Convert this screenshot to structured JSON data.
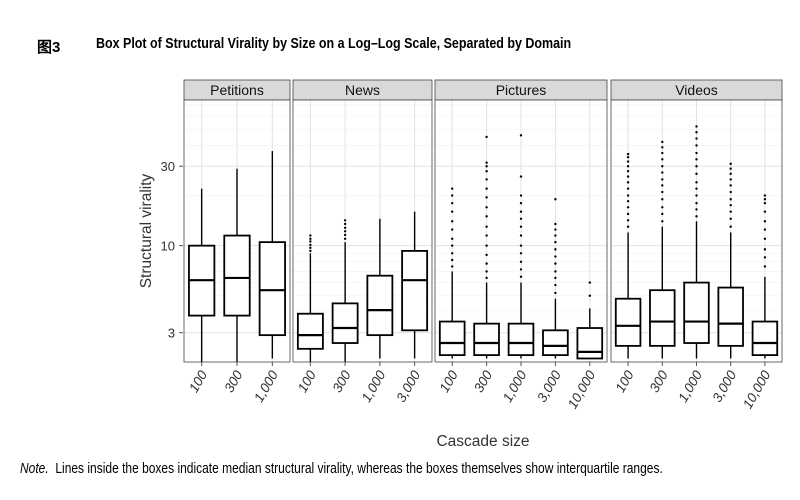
{
  "figure": {
    "number": "图3",
    "title": "Box Plot of Structural Virality by Size on a Log–Log Scale, Separated by Domain"
  },
  "note": {
    "lead": "Note.",
    "text": "Lines inside the boxes indicate median structural virality, whereas the boxes themselves show interquartile ranges."
  },
  "chart_data": {
    "type": "box",
    "xlabel": "Cascade size",
    "ylabel": "Structural virality",
    "y_scale": "log",
    "ylim": [
      2,
      75
    ],
    "y_ticks": [
      3,
      10,
      30
    ],
    "y_tick_labels": [
      "3",
      "10",
      "30"
    ],
    "grid": true,
    "line_color": "#000000",
    "strip_color": "#d9d9d9",
    "panels": [
      {
        "name": "Petitions",
        "boxes": [
          {
            "category": "100",
            "whisker_low": 2.0,
            "q1": 3.8,
            "median": 6.2,
            "q3": 10.0,
            "whisker_high": 22.0,
            "outliers": []
          },
          {
            "category": "300",
            "whisker_low": 2.0,
            "q1": 3.8,
            "median": 6.4,
            "q3": 11.5,
            "whisker_high": 29.0,
            "outliers": []
          },
          {
            "category": "1,000",
            "whisker_low": 2.1,
            "q1": 2.9,
            "median": 5.4,
            "q3": 10.5,
            "whisker_high": 37.0,
            "outliers": []
          }
        ]
      },
      {
        "name": "News",
        "boxes": [
          {
            "category": "100",
            "whisker_low": 2.0,
            "q1": 2.4,
            "median": 2.9,
            "q3": 3.9,
            "whisker_high": 9.0,
            "outliers": [
              9.3,
              9.7,
              10.1,
              10.6,
              11.0,
              11.5
            ]
          },
          {
            "category": "300",
            "whisker_low": 2.0,
            "q1": 2.6,
            "median": 3.2,
            "q3": 4.5,
            "whisker_high": 10.5,
            "outliers": [
              11.0,
              11.6,
              12.2,
              12.8,
              13.5,
              14.2
            ]
          },
          {
            "category": "1,000",
            "whisker_low": 2.1,
            "q1": 2.9,
            "median": 4.1,
            "q3": 6.6,
            "whisker_high": 14.5,
            "outliers": []
          },
          {
            "category": "3,000",
            "whisker_low": 2.1,
            "q1": 3.1,
            "median": 6.2,
            "q3": 9.3,
            "whisker_high": 16.0,
            "outliers": []
          }
        ]
      },
      {
        "name": "Pictures",
        "boxes": [
          {
            "category": "100",
            "whisker_low": 2.1,
            "q1": 2.2,
            "median": 2.6,
            "q3": 3.5,
            "whisker_high": 7.0,
            "outliers": [
              7.5,
              8.2,
              9.0,
              10.0,
              11.0,
              12.5,
              14.0,
              16.0,
              18.0,
              20.0,
              22.0
            ]
          },
          {
            "category": "300",
            "whisker_low": 2.1,
            "q1": 2.2,
            "median": 2.6,
            "q3": 3.4,
            "whisker_high": 6.0,
            "outliers": [
              6.4,
              7.0,
              7.8,
              8.8,
              10.0,
              11.5,
              13.0,
              15.0,
              17.0,
              19.5,
              22.0,
              25.0,
              28.0,
              30.0,
              31.5,
              45.0
            ]
          },
          {
            "category": "1,000",
            "whisker_low": 2.1,
            "q1": 2.2,
            "median": 2.6,
            "q3": 3.4,
            "whisker_high": 6.0,
            "outliers": [
              6.5,
              7.2,
              8.0,
              9.0,
              10.0,
              11.5,
              13.0,
              14.5,
              16.0,
              18.0,
              20.0,
              26.0,
              46.0
            ]
          },
          {
            "category": "3,000",
            "whisker_low": 2.1,
            "q1": 2.2,
            "median": 2.5,
            "q3": 3.1,
            "whisker_high": 4.8,
            "outliers": [
              5.2,
              5.8,
              6.4,
              7.0,
              7.8,
              8.6,
              9.5,
              10.5,
              11.5,
              12.5,
              13.5,
              19.0
            ]
          },
          {
            "category": "10,000",
            "whisker_low": 2.1,
            "q1": 2.1,
            "median": 2.3,
            "q3": 3.2,
            "whisker_high": 4.2,
            "outliers": [
              5.0,
              6.0
            ]
          }
        ]
      },
      {
        "name": "Videos",
        "boxes": [
          {
            "category": "100",
            "whisker_low": 2.1,
            "q1": 2.5,
            "median": 3.3,
            "q3": 4.8,
            "whisker_high": 12.0,
            "outliers": [
              13.0,
              14.2,
              15.5,
              17.0,
              18.5,
              20.0,
              22.0,
              24.0,
              26.0,
              28.0,
              30.0,
              32.0,
              34.0,
              35.5
            ]
          },
          {
            "category": "300",
            "whisker_low": 2.1,
            "q1": 2.5,
            "median": 3.5,
            "q3": 5.4,
            "whisker_high": 13.0,
            "outliers": [
              14.0,
              15.5,
              17.0,
              19.0,
              21.0,
              23.0,
              25.0,
              27.5,
              30.0,
              33.0,
              36.0,
              39.0,
              42.0
            ]
          },
          {
            "category": "1,000",
            "whisker_low": 2.1,
            "q1": 2.6,
            "median": 3.5,
            "q3": 6.0,
            "whisker_high": 14.0,
            "outliers": [
              15.0,
              16.5,
              18.0,
              20.0,
              22.0,
              24.0,
              27.0,
              30.0,
              33.0,
              36.0,
              40.0,
              44.0,
              48.0,
              52.0
            ]
          },
          {
            "category": "3,000",
            "whisker_low": 2.1,
            "q1": 2.5,
            "median": 3.4,
            "q3": 5.6,
            "whisker_high": 12.0,
            "outliers": [
              13.0,
              14.5,
              16.0,
              17.5,
              19.0,
              21.0,
              23.0,
              25.0,
              27.0,
              29.0,
              31.0
            ]
          },
          {
            "category": "10,000",
            "whisker_low": 2.1,
            "q1": 2.2,
            "median": 2.6,
            "q3": 3.5,
            "whisker_high": 6.5,
            "outliers": [
              7.5,
              8.5,
              9.5,
              11.0,
              12.5,
              14.0,
              16.0,
              18.0,
              19.0,
              20.0
            ]
          }
        ]
      }
    ]
  }
}
